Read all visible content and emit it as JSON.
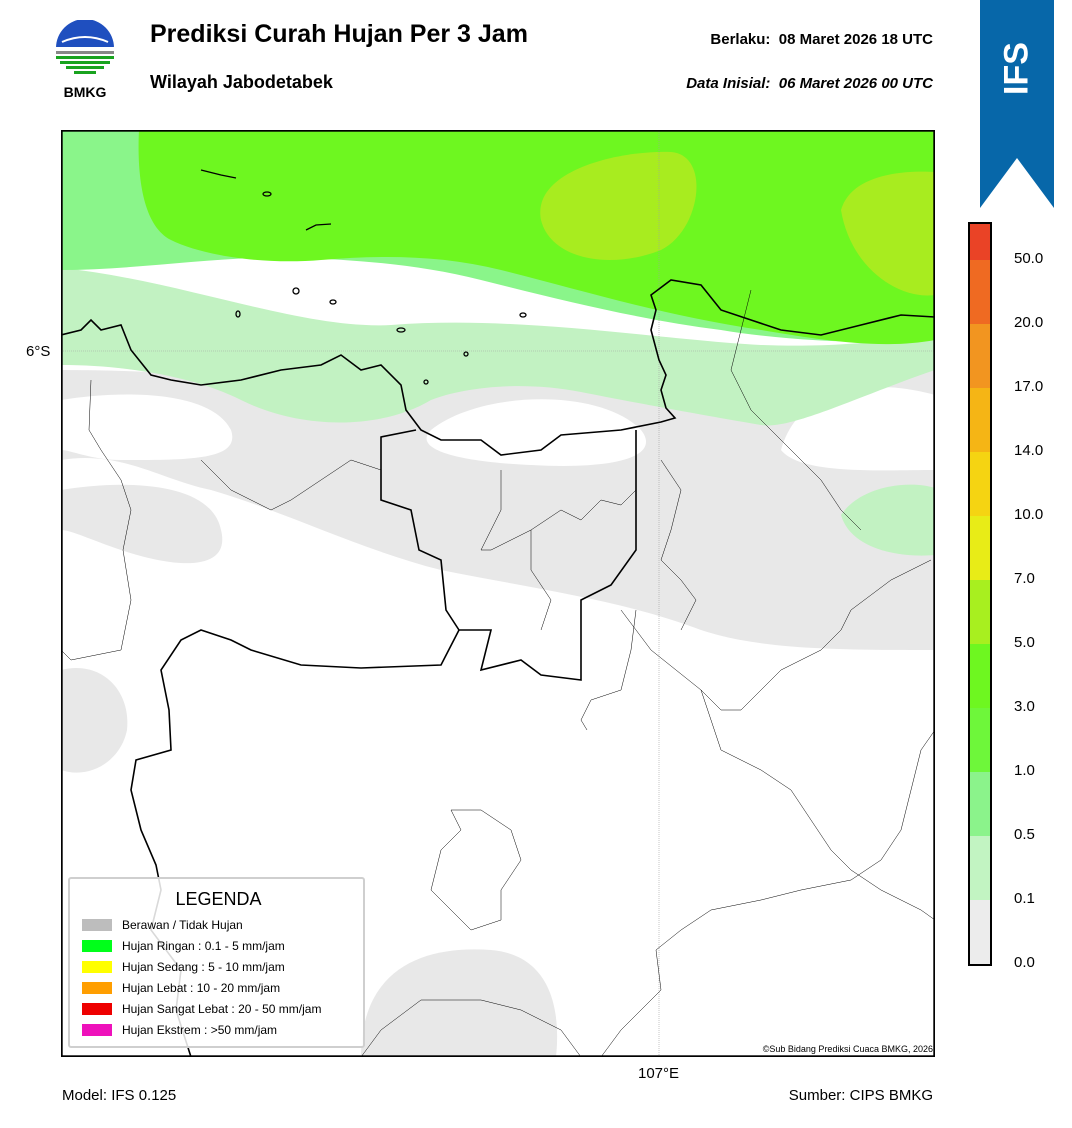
{
  "header": {
    "title": "Prediksi Curah Hujan Per 3 Jam",
    "subtitle": "Wilayah Jabodetabek",
    "valid_label": "Berlaku:  08 Maret 2026 18 UTC",
    "init_label": "Data Inisial:  06 Maret 2026 00 UTC"
  },
  "logo": {
    "text": "BMKG",
    "icon": "bmkg-logo"
  },
  "ribbon": {
    "text": "IFS",
    "color": "#0767a9"
  },
  "map": {
    "lat_label": "6°S",
    "lon_label": "107°E",
    "copyright": "©Sub Bidang Prediksi Cuaca BMKG, 2026"
  },
  "legend": {
    "title": "LEGENDA",
    "items": [
      {
        "label": "Berawan / Tidak Hujan",
        "color": "#bdbdbd"
      },
      {
        "label": "Hujan Ringan : 0.1 - 5 mm/jam",
        "color": "#00ff1a"
      },
      {
        "label": "Hujan Sedang : 5 - 10 mm/jam",
        "color": "#ffff00"
      },
      {
        "label": "Hujan Lebat : 10 - 20 mm/jam",
        "color": "#ff9e00"
      },
      {
        "label": "Hujan Sangat Lebat : 20 - 50 mm/jam",
        "color": "#ee0000"
      },
      {
        "label": "Hujan Ekstrem : >50 mm/jam",
        "color": "#ee11bb"
      }
    ]
  },
  "colorbar": {
    "ticks": [
      "0.0",
      "0.1",
      "0.5",
      "1.0",
      "3.0",
      "5.0",
      "7.0",
      "10.0",
      "14.0",
      "17.0",
      "20.0",
      "50.0"
    ],
    "colors": [
      "#ececec",
      "#c2f4c2",
      "#8bf38b",
      "#6ef73a",
      "#6ef720",
      "#a8ef1f",
      "#e8ec17",
      "#f5d412",
      "#f5b515",
      "#f29520",
      "#ef6a22",
      "#ea4326",
      "#e21a1a",
      "#e21ac8"
    ]
  },
  "footer": {
    "model": "Model: IFS 0.125",
    "source": "Sumber: CIPS BMKG"
  }
}
